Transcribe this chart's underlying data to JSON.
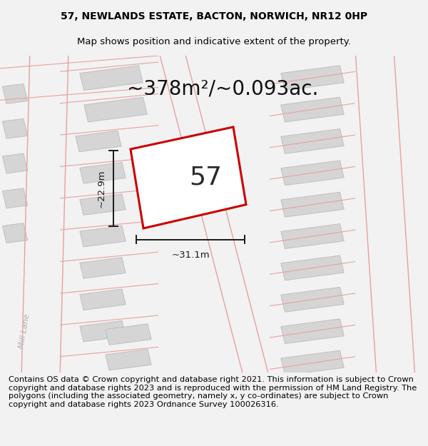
{
  "title_line1": "57, NEWLANDS ESTATE, BACTON, NORWICH, NR12 0HP",
  "title_line2": "Map shows position and indicative extent of the property.",
  "area_text": "~378m²/~0.093ac.",
  "label_57": "57",
  "dim_width": "~31.1m",
  "dim_height": "~22.9m",
  "footer_text": "Contains OS data © Crown copyright and database right 2021. This information is subject to Crown copyright and database rights 2023 and is reproduced with the permission of HM Land Registry. The polygons (including the associated geometry, namely x, y co-ordinates) are subject to Crown copyright and database rights 2023 Ordnance Survey 100026316.",
  "bg_color": "#f2f2f2",
  "map_bg": "#f8f8f8",
  "road_line_color": "#e8a0a0",
  "building_color": "#d5d5d5",
  "building_edge": "#bbbbbb",
  "plot_color": "#ffffff",
  "plot_edge": "#cc0000",
  "dim_line_color": "#1a1a1a",
  "title_fontsize": 10,
  "subtitle_fontsize": 9.5,
  "area_fontsize": 20,
  "label_fontsize": 26,
  "footer_fontsize": 8.2,
  "dim_fontsize": 9.5,
  "mill_lane_fontsize": 8
}
